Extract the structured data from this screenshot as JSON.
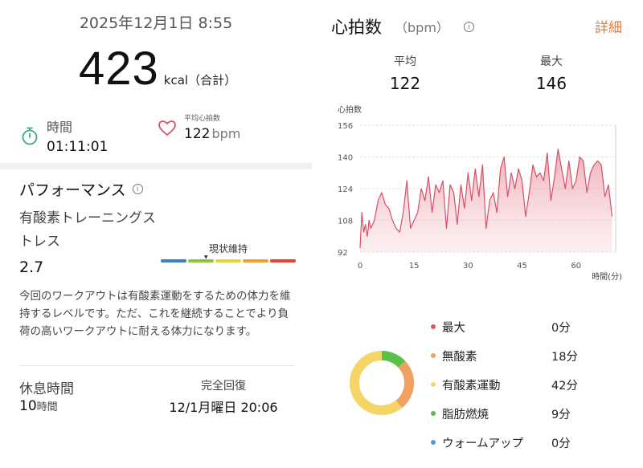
{
  "summary": {
    "datetime": "2025年12月1日 8:55",
    "calories": "423",
    "calories_unit": "kcal（合計）"
  },
  "duration": {
    "label": "時間",
    "value": "01:11:01"
  },
  "avg_hr": {
    "label": "平均心拍数",
    "value": "122",
    "unit": "bpm"
  },
  "performance": {
    "title": "パフォーマンス",
    "info_icon": "i",
    "stress_label": "有酸素トレーニングストレス",
    "stress_value": "2.7",
    "scale_label": "現状維持",
    "scale_colors": [
      "#3b82c4",
      "#8cc63f",
      "#d9d93b",
      "#f0a030",
      "#e04535"
    ],
    "description": "今回のワークアウトは有酸素運動をするための体力を維持するレベルです。ただ、これを継続することでより負荷の高いワークアウトに耐える体力になります。"
  },
  "rest": {
    "label": "休息時間",
    "value": "10",
    "unit": "時間",
    "recover_label": "完全回復",
    "recover_value": "12/1月曜日 20:06"
  },
  "heart_rate": {
    "title": "心拍数",
    "unit": "（bpm）",
    "info_icon": "i",
    "detail_label": "詳細",
    "avg_label": "平均",
    "avg_value": "122",
    "max_label": "最大",
    "max_value": "146"
  },
  "chart_data": {
    "type": "area",
    "title": "",
    "ylabel": "心拍数",
    "xlabel": "時間(分)",
    "ylim": [
      92,
      156
    ],
    "xlim": [
      0,
      71
    ],
    "yticks": [
      156,
      140,
      124,
      108,
      92
    ],
    "xticks": [
      0,
      15,
      30,
      45,
      60
    ],
    "color": "#d65065",
    "x": [
      0,
      0.5,
      1,
      1.5,
      2,
      2.5,
      3,
      3.5,
      4,
      5,
      6,
      7,
      8,
      9,
      10,
      11,
      12,
      13,
      14,
      15,
      16,
      17,
      18,
      19,
      20,
      21,
      22,
      23,
      24,
      25,
      26,
      27,
      28,
      29,
      30,
      31,
      32,
      33,
      34,
      35,
      36,
      37,
      38,
      39,
      40,
      41,
      42,
      43,
      44,
      45,
      46,
      47,
      48,
      49,
      50,
      51,
      52,
      53,
      54,
      55,
      56,
      57,
      58,
      59,
      60,
      61,
      62,
      63,
      64,
      65,
      66,
      67,
      68,
      69,
      70
    ],
    "y": [
      94,
      112,
      102,
      106,
      100,
      108,
      104,
      106,
      108,
      118,
      122,
      116,
      114,
      108,
      104,
      102,
      112,
      128,
      104,
      108,
      112,
      124,
      118,
      130,
      112,
      126,
      122,
      128,
      104,
      126,
      122,
      106,
      126,
      114,
      132,
      118,
      134,
      120,
      136,
      104,
      118,
      122,
      112,
      134,
      140,
      120,
      132,
      124,
      134,
      128,
      110,
      122,
      136,
      130,
      132,
      128,
      142,
      118,
      130,
      144,
      134,
      124,
      138,
      124,
      128,
      140,
      138,
      122,
      132,
      136,
      138,
      136,
      120,
      126,
      110
    ]
  },
  "zones": {
    "names": [
      "最大",
      "無酸素",
      "有酸素運動",
      "脂肪燃焼",
      "ウォームアップ"
    ],
    "values": [
      "0分",
      "18分",
      "42分",
      "9分",
      "0分"
    ],
    "minutes": [
      0,
      18,
      42,
      9,
      0
    ],
    "colors": [
      "#e05a5a",
      "#f0a060",
      "#f5d565",
      "#5cbf4a",
      "#4a9ee0"
    ]
  }
}
